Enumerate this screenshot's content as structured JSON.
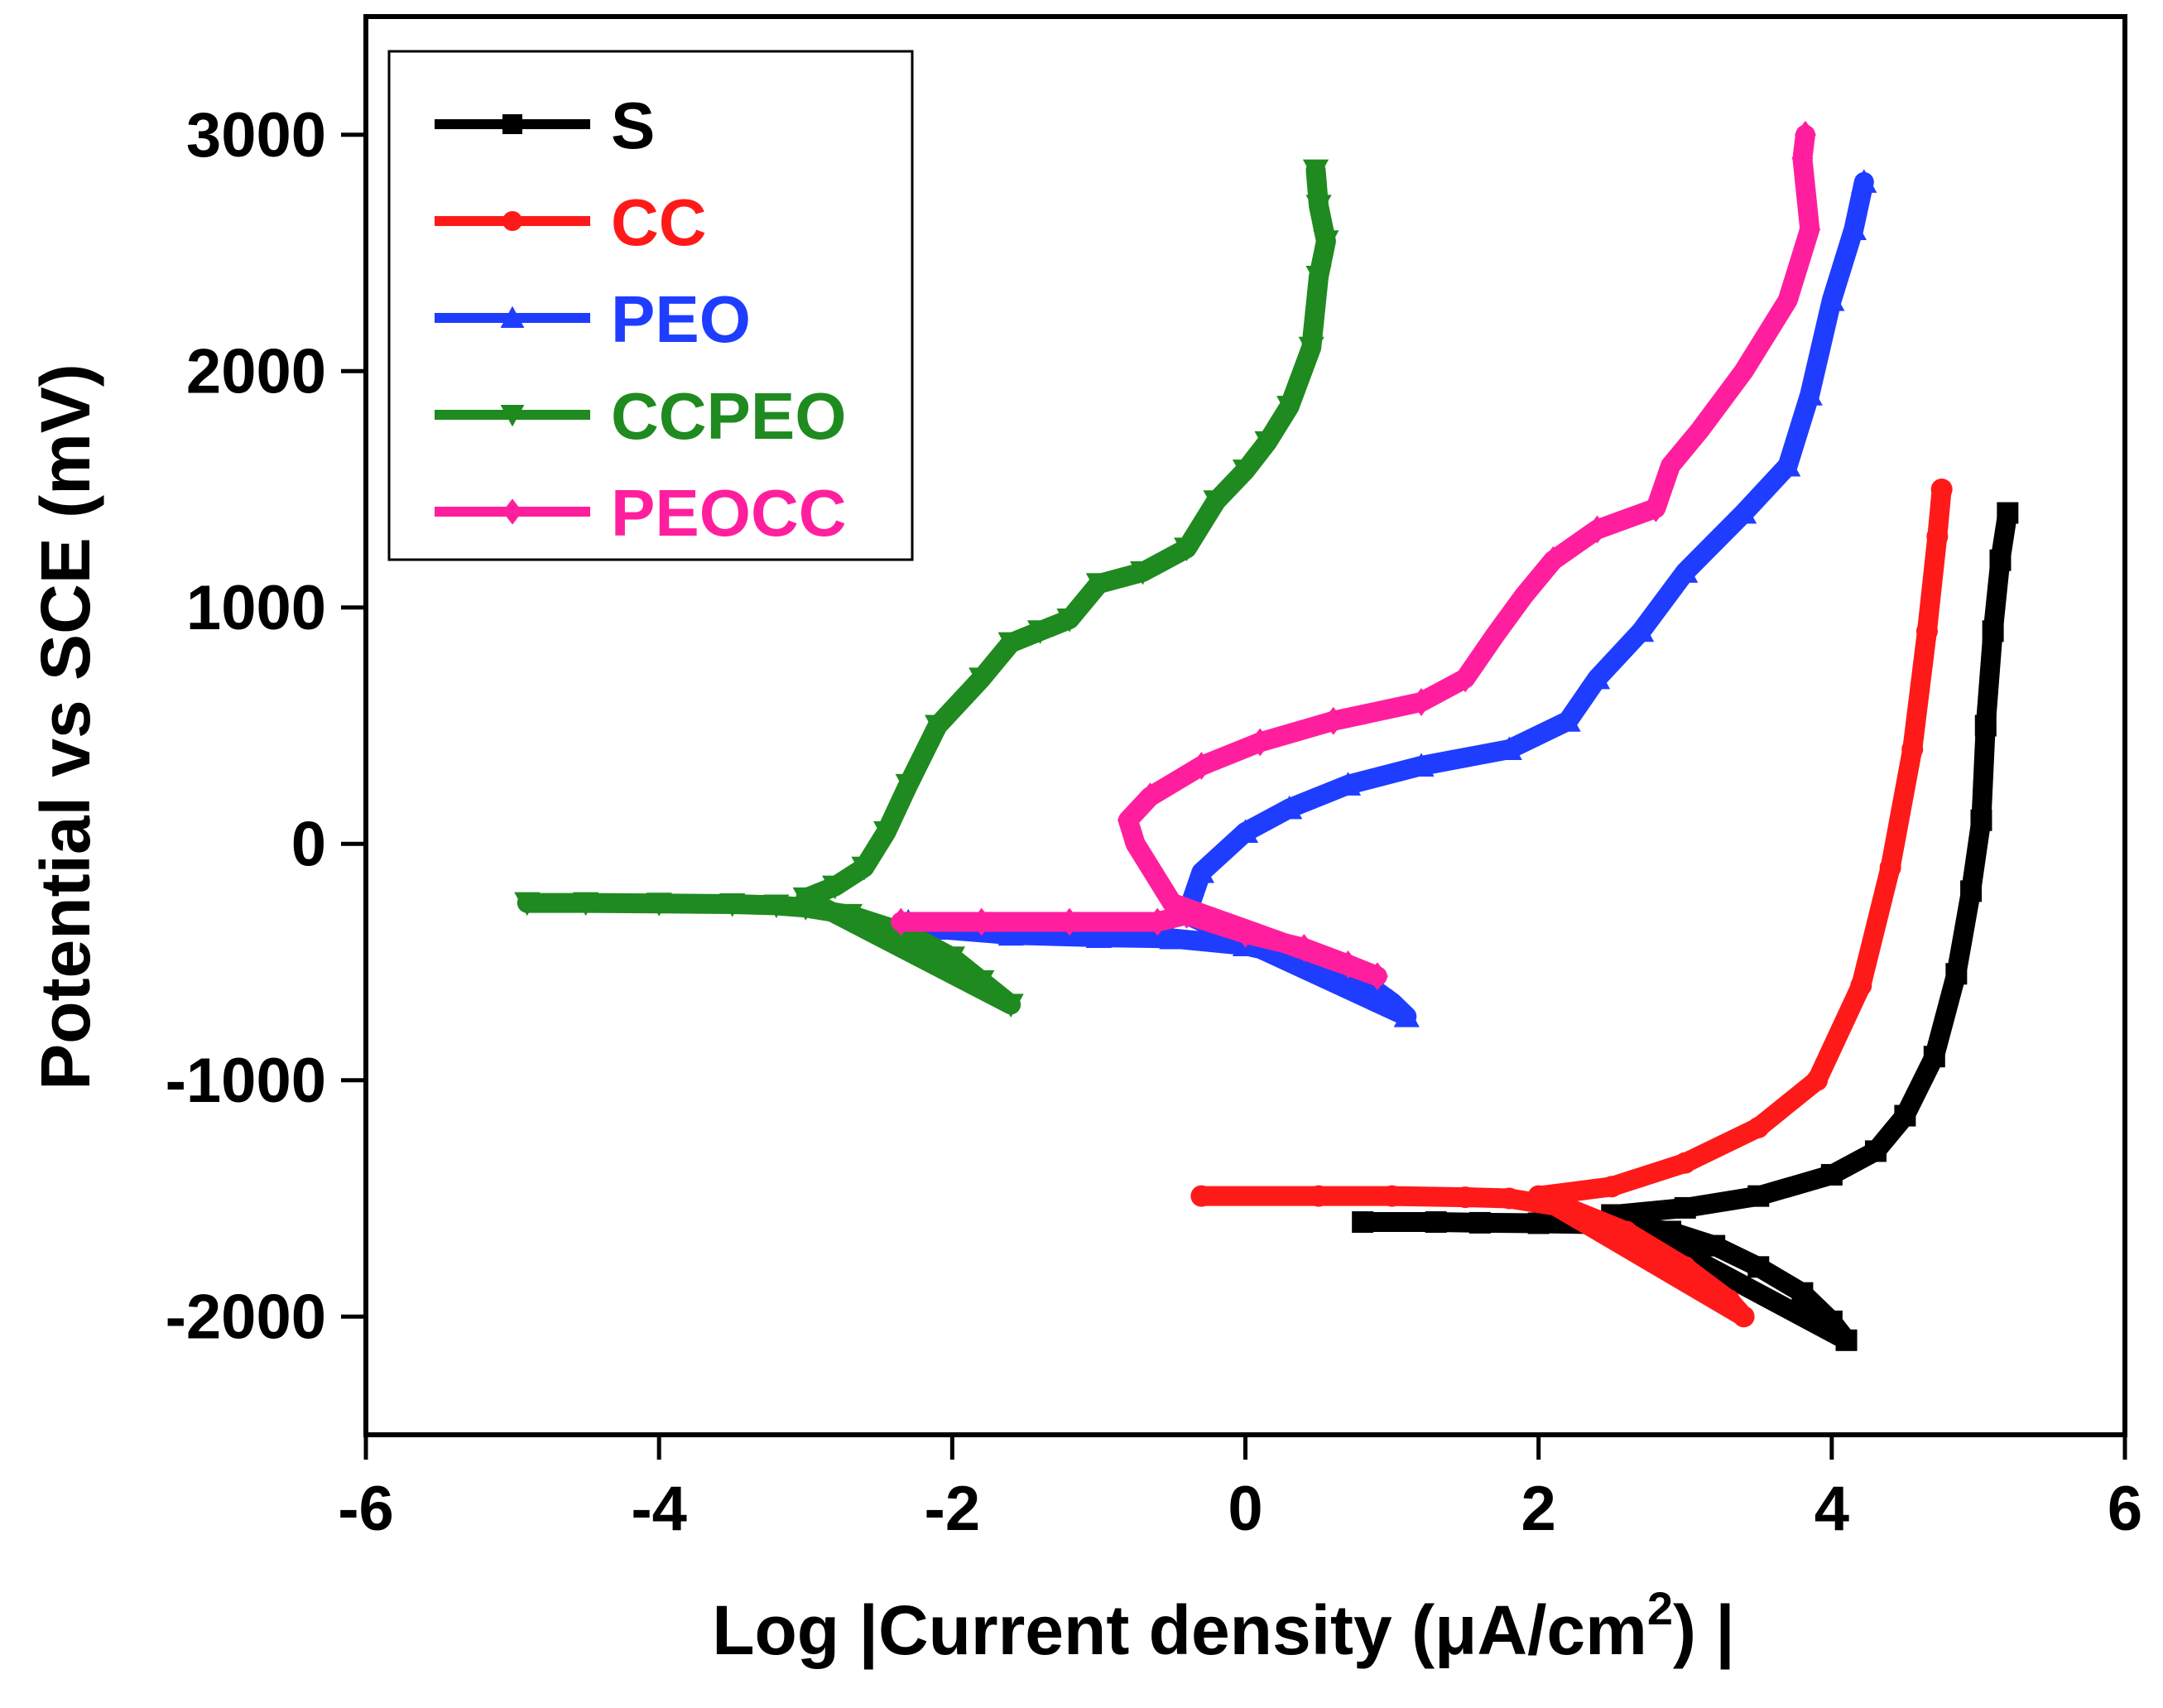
{
  "chart_data": {
    "type": "line",
    "xlabel": "Log |Current density (μA/cm",
    "xlabel_sup": "2",
    "xlabel_end": ") |",
    "ylabel": "Potential  vs SCE (mV)",
    "xlim": [
      -6,
      6
    ],
    "ylim": [
      -2500,
      3500
    ],
    "xticks": [
      -6,
      -4,
      -2,
      0,
      2,
      4,
      6
    ],
    "yticks": [
      -2000,
      -1000,
      0,
      1000,
      2000,
      3000
    ],
    "legend_position": "top-left",
    "series": [
      {
        "name": "S",
        "color": "#000000",
        "marker": "square",
        "points": [
          [
            0.8,
            -1600
          ],
          [
            1.3,
            -1600
          ],
          [
            1.6,
            -1603
          ],
          [
            2.0,
            -1605
          ],
          [
            2.5,
            -1610
          ],
          [
            2.9,
            -1640
          ],
          [
            3.2,
            -1700
          ],
          [
            3.5,
            -1790
          ],
          [
            3.8,
            -1900
          ],
          [
            4.0,
            -2020
          ],
          [
            4.1,
            -2100
          ],
          [
            2.5,
            -1570
          ],
          [
            3.0,
            -1540
          ],
          [
            3.5,
            -1490
          ],
          [
            4.0,
            -1400
          ],
          [
            4.3,
            -1300
          ],
          [
            4.5,
            -1150
          ],
          [
            4.7,
            -900
          ],
          [
            4.85,
            -550
          ],
          [
            4.95,
            -200
          ],
          [
            5.02,
            100
          ],
          [
            5.05,
            500
          ],
          [
            5.1,
            900
          ],
          [
            5.15,
            1200
          ],
          [
            5.2,
            1400
          ]
        ]
      },
      {
        "name": "CC",
        "color": "#ff1a1a",
        "marker": "circle",
        "points": [
          [
            -0.3,
            -1490
          ],
          [
            0.5,
            -1490
          ],
          [
            1.0,
            -1490
          ],
          [
            1.5,
            -1495
          ],
          [
            1.8,
            -1500
          ],
          [
            2.2,
            -1540
          ],
          [
            2.6,
            -1640
          ],
          [
            3.0,
            -1790
          ],
          [
            3.3,
            -1930
          ],
          [
            3.4,
            -2000
          ],
          [
            2.0,
            -1490
          ],
          [
            2.5,
            -1450
          ],
          [
            3.0,
            -1350
          ],
          [
            3.5,
            -1200
          ],
          [
            3.9,
            -1000
          ],
          [
            4.2,
            -600
          ],
          [
            4.4,
            -100
          ],
          [
            4.55,
            400
          ],
          [
            4.65,
            900
          ],
          [
            4.72,
            1300
          ],
          [
            4.75,
            1500
          ]
        ]
      },
      {
        "name": "PEO",
        "color": "#1f3dff",
        "marker": "triangle-up",
        "points": [
          [
            -2.3,
            -330
          ],
          [
            -2.1,
            -360
          ],
          [
            -1.6,
            -385
          ],
          [
            -1.0,
            -395
          ],
          [
            -0.5,
            -400
          ],
          [
            0.0,
            -430
          ],
          [
            0.5,
            -500
          ],
          [
            0.8,
            -580
          ],
          [
            1.0,
            -670
          ],
          [
            1.1,
            -730
          ],
          [
            -0.4,
            -300
          ],
          [
            -0.3,
            -120
          ],
          [
            0.0,
            50
          ],
          [
            0.3,
            150
          ],
          [
            0.7,
            250
          ],
          [
            1.2,
            330
          ],
          [
            1.8,
            400
          ],
          [
            2.2,
            520
          ],
          [
            2.4,
            700
          ],
          [
            2.7,
            900
          ],
          [
            3.0,
            1150
          ],
          [
            3.4,
            1400
          ],
          [
            3.7,
            1600
          ],
          [
            3.85,
            1900
          ],
          [
            4.0,
            2300
          ],
          [
            4.15,
            2600
          ],
          [
            4.22,
            2800
          ]
        ]
      },
      {
        "name": "CCPEO",
        "color": "#1f8a1f",
        "marker": "triangle-down",
        "points": [
          [
            -4.9,
            -250
          ],
          [
            -4.5,
            -250
          ],
          [
            -4.0,
            -252
          ],
          [
            -3.5,
            -255
          ],
          [
            -3.2,
            -260
          ],
          [
            -3.0,
            -270
          ],
          [
            -2.7,
            -300
          ],
          [
            -2.3,
            -380
          ],
          [
            -2.0,
            -480
          ],
          [
            -1.8,
            -580
          ],
          [
            -1.6,
            -680
          ],
          [
            -3.0,
            -230
          ],
          [
            -2.8,
            -180
          ],
          [
            -2.6,
            -100
          ],
          [
            -2.45,
            50
          ],
          [
            -2.3,
            250
          ],
          [
            -2.1,
            500
          ],
          [
            -1.8,
            700
          ],
          [
            -1.6,
            850
          ],
          [
            -1.4,
            900
          ],
          [
            -1.2,
            950
          ],
          [
            -1.0,
            1100
          ],
          [
            -0.7,
            1150
          ],
          [
            -0.4,
            1250
          ],
          [
            -0.2,
            1450
          ],
          [
            0.0,
            1580
          ],
          [
            0.15,
            1700
          ],
          [
            0.3,
            1850
          ],
          [
            0.45,
            2100
          ],
          [
            0.5,
            2400
          ],
          [
            0.55,
            2550
          ],
          [
            0.5,
            2700
          ],
          [
            0.48,
            2850
          ]
        ]
      },
      {
        "name": "PEOCC",
        "color": "#ff1f9e",
        "marker": "diamond",
        "points": [
          [
            -2.35,
            -330
          ],
          [
            -1.8,
            -330
          ],
          [
            -1.2,
            -330
          ],
          [
            -0.6,
            -330
          ],
          [
            -0.4,
            -300
          ],
          [
            0.0,
            -380
          ],
          [
            0.4,
            -440
          ],
          [
            0.7,
            -510
          ],
          [
            0.9,
            -560
          ],
          [
            -0.5,
            -250
          ],
          [
            -0.6,
            -150
          ],
          [
            -0.75,
            0
          ],
          [
            -0.8,
            100
          ],
          [
            -0.65,
            200
          ],
          [
            -0.3,
            330
          ],
          [
            0.1,
            430
          ],
          [
            0.6,
            520
          ],
          [
            1.2,
            600
          ],
          [
            1.5,
            700
          ],
          [
            1.7,
            880
          ],
          [
            1.9,
            1050
          ],
          [
            2.1,
            1200
          ],
          [
            2.4,
            1330
          ],
          [
            2.8,
            1420
          ],
          [
            2.9,
            1600
          ],
          [
            3.1,
            1750
          ],
          [
            3.4,
            2000
          ],
          [
            3.7,
            2300
          ],
          [
            3.85,
            2600
          ],
          [
            3.8,
            2900
          ],
          [
            3.82,
            3000
          ]
        ]
      }
    ]
  }
}
